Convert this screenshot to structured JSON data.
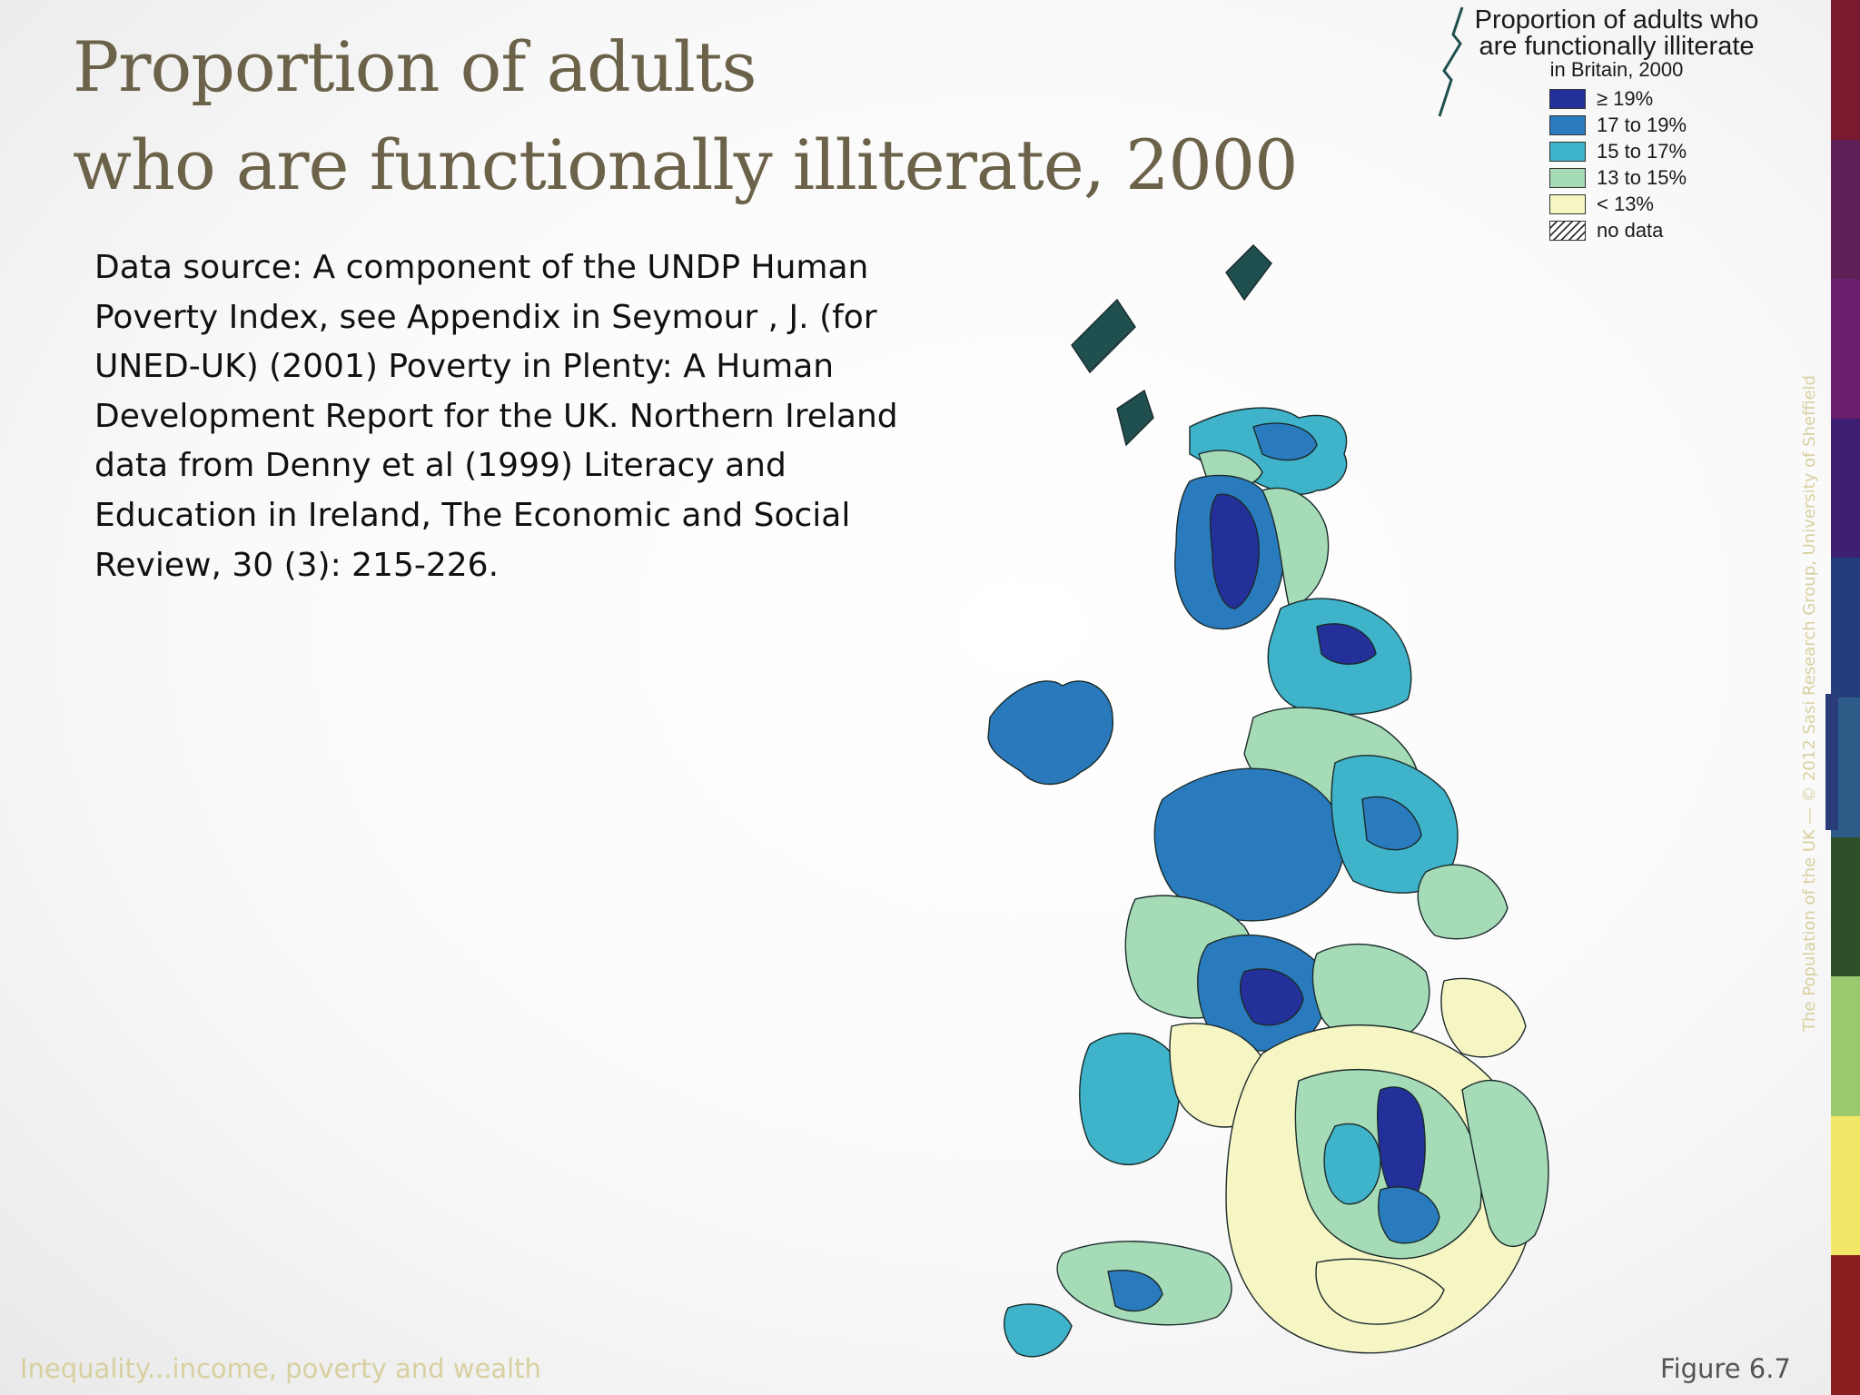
{
  "title": {
    "line1": "Proportion of adults",
    "line2": "who are functionally illiterate, 2000"
  },
  "source_text": "Data source: A component of the UNDP Human Poverty Index, see Appendix in Seymour , J. (for UNED-UK) (2001) Poverty in Plenty: A Human Development Report for the UK. Northern Ireland data from Denny et al (1999) Literacy and Education in Ireland, The Economic and Social Review, 30 (3): 215-226.",
  "legend": {
    "title": "Proportion of adults who are functionally illiterate",
    "subtitle": "in Britain, 2000",
    "items": [
      {
        "label": "≥ 19%",
        "color": "#24309a"
      },
      {
        "label": "17 to 19%",
        "color": "#2a7bbe"
      },
      {
        "label": "15 to 17%",
        "color": "#3eb3c9"
      },
      {
        "label": "13 to 15%",
        "color": "#a6dbb8"
      },
      {
        "label": "< 13%",
        "color": "#f6f5c4"
      },
      {
        "label": "no data",
        "color": "hatch"
      }
    ]
  },
  "footer": {
    "left": "Inequality...income, poverty and wealth",
    "right": "Figure 6.7"
  },
  "vertical_credit": "The Population of the UK — © 2012  Sasi Research Group, University of Sheffield",
  "side_bar_colors": [
    "#7b1a2e",
    "#5d1f56",
    "#6a1f6f",
    "#3f1f74",
    "#233e7a",
    "#2f5d8a",
    "#2d4f2a",
    "#9bc96e",
    "#f2e766",
    "#8a1f1f"
  ]
}
